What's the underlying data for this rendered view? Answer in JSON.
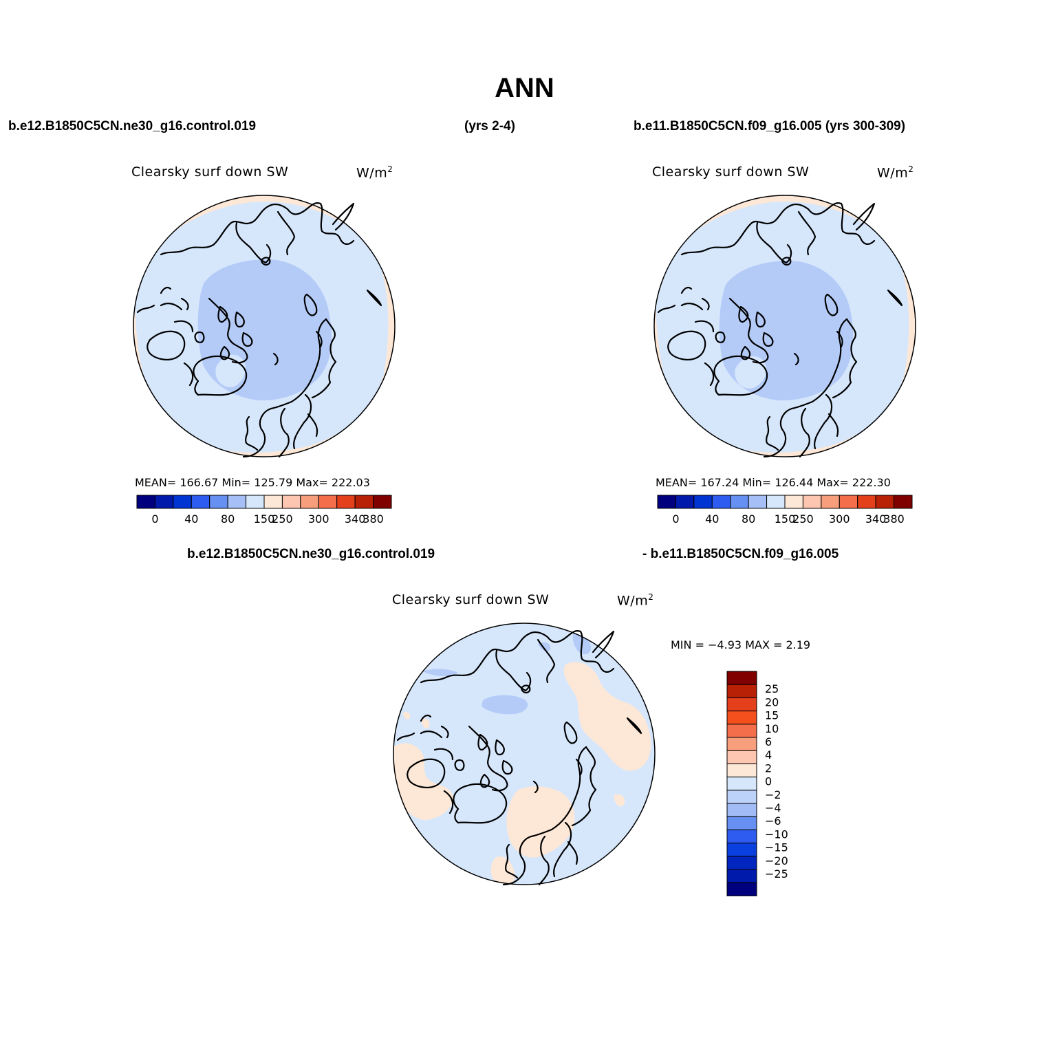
{
  "figure": {
    "season": "ANN",
    "case1_name": "b.e12.B1850C5CN.ne30_g16.control.019",
    "case1_years": "(yrs 2-4)",
    "case2_label": "b.e11.B1850C5CN.f09_g16.005 (yrs 300-309)",
    "diff_label_left": "b.e12.B1850C5CN.ne30_g16.control.019",
    "diff_label_right": "- b.e11.B1850C5CN.f09_g16.005"
  },
  "panels": {
    "left": {
      "variable": "Clearsky surf down SW",
      "units": "W/m",
      "units_sup": "2",
      "stats": "MEAN= 166.67   Min= 125.79   Max= 222.03"
    },
    "right": {
      "variable": "Clearsky surf down SW",
      "units": "W/m",
      "units_sup": "2",
      "stats": "MEAN= 167.24   Min= 126.44   Max= 222.30"
    },
    "diff": {
      "variable": "Clearsky surf down SW",
      "units": "W/m",
      "units_sup": "2",
      "stats": "MIN =   −4.93 MAX =    2.19"
    }
  },
  "colorbars": {
    "abs": {
      "colors": [
        "#00007f",
        "#001aab",
        "#0035d4",
        "#2e5cf0",
        "#6690f2",
        "#a6bff6",
        "#d6e7fc",
        "#fde7d6",
        "#fcc6b0",
        "#f79f7c",
        "#f46e4b",
        "#e5401c",
        "#b92106",
        "#800000"
      ],
      "labels": [
        "0",
        "40",
        "80",
        "150",
        "250",
        "300",
        "340",
        "380"
      ]
    },
    "diff": {
      "colors_top_to_bottom": [
        "#800000",
        "#b92106",
        "#e5401c",
        "#f4501e",
        "#f46e4b",
        "#f79f7c",
        "#fcc6b0",
        "#fde7d6",
        "#d6e7fc",
        "#bcd2f8",
        "#a0bbf6",
        "#6690f2",
        "#2e5cf0",
        "#0a3fe0",
        "#0026bf",
        "#001aab",
        "#00007f"
      ],
      "labels": [
        "25",
        "20",
        "15",
        "10",
        "6",
        "4",
        "2",
        "0",
        "−2",
        "−4",
        "−6",
        "−10",
        "−15",
        "−20",
        "−25"
      ]
    }
  },
  "map_colors": {
    "abs_rim": "#fde7d6",
    "abs_main": "#d6e7fc",
    "abs_inner": "#b4cbf8",
    "diff_main": "#d6e7fc",
    "diff_pos": "#fde7d6",
    "diff_neg": "#b4cbf8"
  }
}
